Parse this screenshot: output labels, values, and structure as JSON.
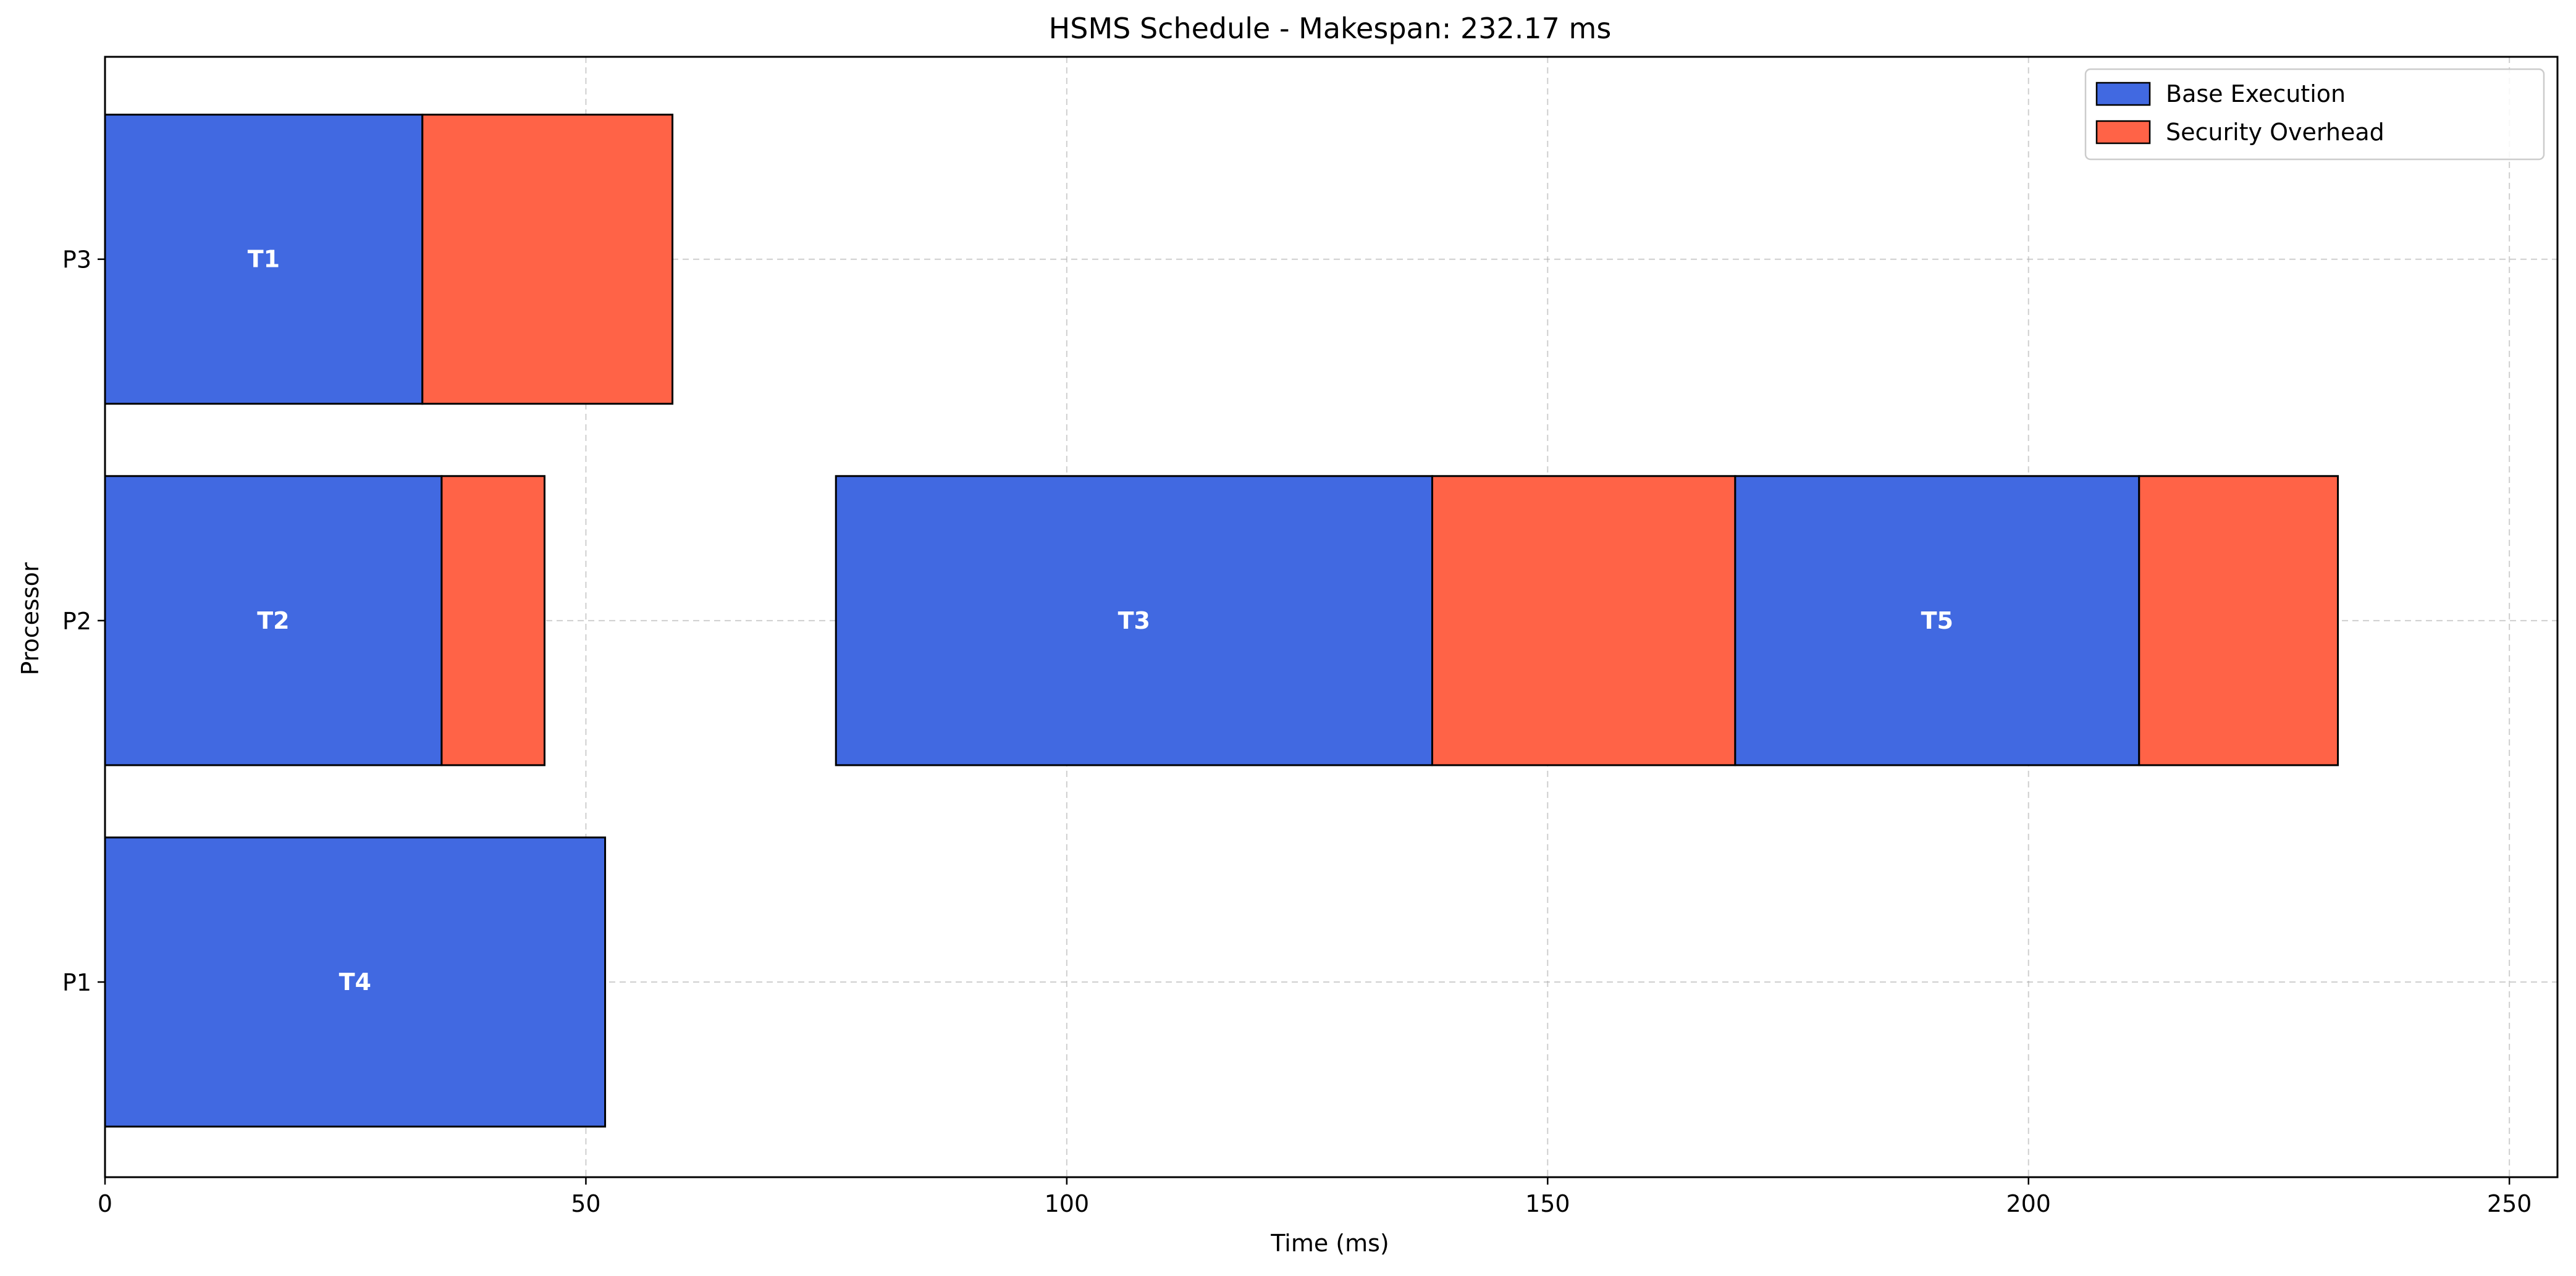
{
  "chart_data": {
    "type": "bar",
    "orientation": "horizontal-gantt",
    "title": "HSMS Schedule - Makespan: 232.17 ms",
    "xlabel": "Time (ms)",
    "ylabel": "Processor",
    "xlim": [
      0,
      255
    ],
    "xticks": [
      0,
      50,
      100,
      150,
      200,
      250
    ],
    "processors": [
      "P1",
      "P2",
      "P3"
    ],
    "grid": true,
    "legend_position": "top-right",
    "series": [
      {
        "name": "Base Execution",
        "color": "#4169E1"
      },
      {
        "name": "Security Overhead",
        "color": "#FF6347"
      }
    ],
    "tasks": [
      {
        "name": "T1",
        "processor": "P3",
        "start": 0,
        "base_end": 33.0,
        "end": 59.0
      },
      {
        "name": "T2",
        "processor": "P2",
        "start": 0,
        "base_end": 35.0,
        "end": 45.7
      },
      {
        "name": "T3",
        "processor": "P2",
        "start": 76.0,
        "base_end": 138.0,
        "end": 169.5
      },
      {
        "name": "T5",
        "processor": "P2",
        "start": 169.5,
        "base_end": 211.5,
        "end": 232.17
      },
      {
        "name": "T4",
        "processor": "P1",
        "start": 0,
        "base_end": 52.0,
        "end": 52.0
      }
    ]
  }
}
